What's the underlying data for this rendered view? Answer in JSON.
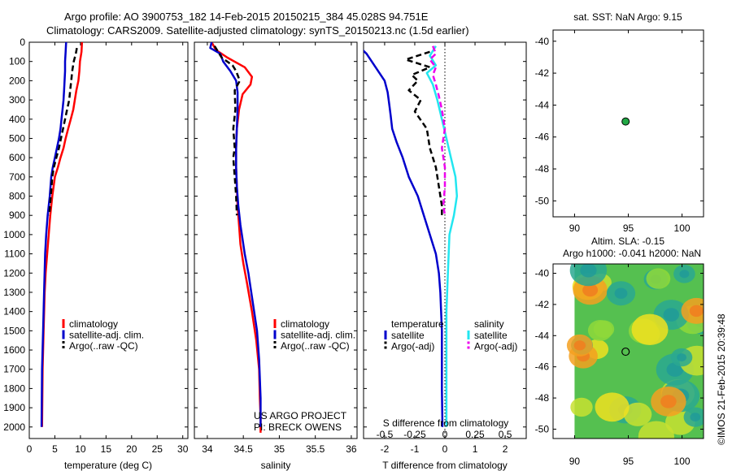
{
  "header": {
    "line1": "Argo profile: AO 3900753_182 14-Feb-2015 20150215_384 45.028S 94.751E",
    "line2": "Climatology: CARS2009. Satellite-adjusted climatology: synTS_20150213.nc (1.5d earlier)"
  },
  "colors": {
    "red": "#ff0000",
    "blue": "#0000cc",
    "black": "#000000",
    "cyan": "#22e6f0",
    "magenta": "#ee00ee"
  },
  "chart_data": [
    {
      "id": "temperature",
      "type": "line",
      "xlabel": "temperature (deg C)",
      "ylabel": "",
      "xlim": [
        0,
        31
      ],
      "ylim": [
        2060,
        0
      ],
      "xticks": [
        0,
        5,
        10,
        15,
        20,
        25,
        30
      ],
      "yticks": [
        0,
        100,
        200,
        300,
        400,
        500,
        600,
        700,
        800,
        900,
        1000,
        1100,
        1200,
        1300,
        1400,
        1500,
        1600,
        1700,
        1800,
        1900,
        2000
      ],
      "legend": [
        "climatology",
        "satellite-adj. clim.",
        "Argo(..raw -QC)"
      ],
      "series": [
        {
          "name": "climatology",
          "color": "red",
          "dash": false,
          "x": [
            10.3,
            10.2,
            9.9,
            9.8,
            9.6,
            9.2,
            8.9,
            8.6,
            8.1,
            7.6,
            7.1,
            6.7,
            6.1,
            5.6,
            5.0,
            4.5,
            4.1,
            3.8,
            3.5,
            3.2,
            3.0,
            2.8,
            2.6,
            2.5
          ],
          "y": [
            0,
            50,
            100,
            150,
            200,
            250,
            300,
            350,
            400,
            450,
            500,
            550,
            600,
            650,
            700,
            800,
            900,
            1000,
            1100,
            1200,
            1300,
            1500,
            1700,
            2000
          ]
        },
        {
          "name": "satellite-adj. clim.",
          "color": "blue",
          "dash": false,
          "x": [
            7.2,
            7.1,
            7.0,
            7.0,
            6.9,
            6.8,
            6.7,
            6.5,
            6.3,
            6.1,
            5.8,
            5.4,
            5.0,
            4.6,
            4.3,
            4.0,
            3.6,
            3.3,
            3.1,
            2.9,
            2.7,
            2.5,
            2.4
          ],
          "y": [
            0,
            50,
            100,
            150,
            200,
            250,
            300,
            350,
            400,
            450,
            500,
            550,
            600,
            650,
            700,
            800,
            900,
            1000,
            1100,
            1300,
            1500,
            1700,
            2000
          ]
        },
        {
          "name": "Argo(..raw -QC)",
          "color": "black",
          "dash": true,
          "x": [
            9.3,
            9.1,
            8.7,
            8.4,
            8.2,
            8.0,
            7.8,
            7.4,
            7.0,
            6.6,
            6.2,
            5.8,
            5.3,
            4.8,
            4.5,
            4.2,
            3.9
          ],
          "y": [
            30,
            60,
            100,
            150,
            200,
            250,
            300,
            350,
            400,
            450,
            500,
            550,
            600,
            650,
            700,
            800,
            900
          ]
        }
      ]
    },
    {
      "id": "salinity",
      "type": "line",
      "xlabel": "salinity",
      "ylabel": "",
      "xlim": [
        33.82,
        36.08
      ],
      "ylim": [
        2060,
        0
      ],
      "xticks": [
        34,
        34.5,
        35,
        35.5,
        36
      ],
      "legend": [
        "climatology",
        "satellite-adj. clim.",
        "Argo(..raw -QC)"
      ],
      "series": [
        {
          "name": "climatology",
          "color": "red",
          "dash": false,
          "x": [
            34.06,
            34.12,
            34.28,
            34.52,
            34.62,
            34.6,
            34.49,
            34.44,
            34.41,
            34.4,
            34.4,
            34.41,
            34.42,
            34.44,
            34.46,
            34.5,
            34.55,
            34.62,
            34.68,
            34.72,
            34.73,
            34.74,
            34.74
          ],
          "y": [
            0,
            40,
            80,
            130,
            180,
            220,
            270,
            350,
            450,
            550,
            650,
            750,
            850,
            950,
            1050,
            1150,
            1250,
            1400,
            1550,
            1700,
            1850,
            1950,
            2030
          ]
        },
        {
          "name": "satellite-adj. clim.",
          "color": "blue",
          "dash": false,
          "x": [
            34.06,
            34.04,
            34.18,
            34.22,
            34.32,
            34.4,
            34.42,
            34.42,
            34.41,
            34.4,
            34.4,
            34.41,
            34.43,
            34.46,
            34.52,
            34.57,
            34.63,
            34.69,
            34.72,
            34.74,
            34.74
          ],
          "y": [
            0,
            30,
            60,
            100,
            150,
            200,
            260,
            350,
            450,
            550,
            650,
            750,
            850,
            950,
            1100,
            1200,
            1350,
            1500,
            1650,
            1850,
            2000
          ]
        },
        {
          "name": "Argo(..raw -QC)",
          "color": "black",
          "dash": true,
          "x": [
            34.1,
            34.15,
            34.2,
            34.35,
            34.4,
            34.45,
            34.38,
            34.39,
            34.36,
            34.38,
            34.36,
            34.37,
            34.38,
            34.4,
            34.41
          ],
          "y": [
            20,
            50,
            80,
            120,
            150,
            200,
            250,
            350,
            450,
            550,
            600,
            650,
            700,
            800,
            900
          ]
        }
      ]
    },
    {
      "id": "difference",
      "type": "line",
      "xlabel": "T difference from climatology",
      "xlabel2": "S difference from climatology",
      "xlim": [
        -2.7,
        2.7
      ],
      "ylim": [
        2060,
        0
      ],
      "xticks": [
        -2,
        -1,
        0,
        1,
        2
      ],
      "xticks_salinity": [
        -0.5,
        -0.25,
        0,
        0.25,
        0.5
      ],
      "xticks_salinity_labels": [
        "-0.5",
        "-0.25",
        "0",
        "0.25",
        "0.5"
      ],
      "legend_temperature_title": "temperature",
      "legend_salinity_title": "salinity",
      "legend_temperature": [
        "satellite",
        "Argo(-adj)"
      ],
      "legend_salinity": [
        "satellite",
        "Argo(-adj)"
      ],
      "series": [
        {
          "name": "temperature satellite",
          "color": "blue",
          "dash": false,
          "x": [
            -3.0,
            -2.6,
            -2.3,
            -2.0,
            -1.9,
            -1.85,
            -1.8,
            -1.75,
            -1.6,
            -1.4,
            -1.2,
            -0.9,
            -0.7,
            -0.5,
            -0.3,
            -0.2,
            -0.15,
            -0.1,
            -0.1,
            -0.08
          ],
          "y": [
            0,
            60,
            130,
            200,
            260,
            320,
            380,
            450,
            520,
            600,
            700,
            800,
            900,
            1000,
            1100,
            1200,
            1300,
            1500,
            1800,
            2000
          ]
        },
        {
          "name": "temperature Argo(-adj)",
          "color": "black",
          "dash": true,
          "x": [
            -0.5,
            -1.3,
            -0.5,
            -1.1,
            -0.9,
            -1.2,
            -0.8,
            -1.0,
            -0.6,
            -0.5,
            -0.3,
            -0.2,
            -0.1,
            -0.1
          ],
          "y": [
            50,
            90,
            130,
            170,
            200,
            250,
            300,
            360,
            450,
            550,
            650,
            750,
            850,
            900
          ]
        },
        {
          "name": "salinity satellite",
          "color": "cyan",
          "dash": false,
          "x": [
            -0.3,
            -0.5,
            -0.3,
            -0.6,
            -0.4,
            -0.25,
            -0.1,
            0.05,
            0.2,
            0.35,
            0.4,
            0.3,
            0.15,
            0.1,
            0.05,
            0.05,
            0.05,
            0.05
          ],
          "y": [
            20,
            70,
            120,
            160,
            220,
            300,
            400,
            500,
            600,
            700,
            800,
            900,
            1000,
            1200,
            1400,
            1600,
            1800,
            2000
          ]
        },
        {
          "name": "salinity Argo(-adj)",
          "color": "magenta",
          "dash": true,
          "x": [
            -0.4,
            -0.3,
            -0.5,
            -0.3,
            -0.4,
            -0.3,
            -0.2,
            -0.1,
            0.0,
            -0.1,
            0.0,
            0.0,
            -0.05,
            0.0
          ],
          "y": [
            20,
            60,
            90,
            130,
            170,
            220,
            280,
            350,
            450,
            550,
            650,
            750,
            850,
            900
          ]
        }
      ]
    },
    {
      "id": "location",
      "type": "scatter",
      "title": "sat. SST: NaN Argo: 9.15",
      "xlim": [
        88,
        102
      ],
      "ylim": [
        -51,
        -39.3
      ],
      "xticks": [
        90,
        95,
        100
      ],
      "yticks": [
        -40,
        -42,
        -44,
        -46,
        -48,
        -50
      ],
      "points": [
        {
          "x": 94.75,
          "y": -45.03
        }
      ]
    },
    {
      "id": "altimetry",
      "type": "heatmap",
      "title": "Altim. SLA: -0.15",
      "subtitle": "Argo h1000: -0.041 h2000: NaN",
      "xlim": [
        88,
        102
      ],
      "ylim": [
        -50.6,
        -39.4
      ],
      "xticks": [
        90,
        95,
        100
      ],
      "yticks": [
        -40,
        -42,
        -44,
        -46,
        -48,
        -50
      ],
      "data_extent_x": [
        90,
        102
      ],
      "points": [
        {
          "x": 94.75,
          "y": -45.03
        }
      ]
    }
  ],
  "footer": {
    "project": "US ARGO PROJECT",
    "pi": "PI: BRECK OWENS",
    "stamp": "©IMOS 21-Feb-2015 20:39:48"
  }
}
